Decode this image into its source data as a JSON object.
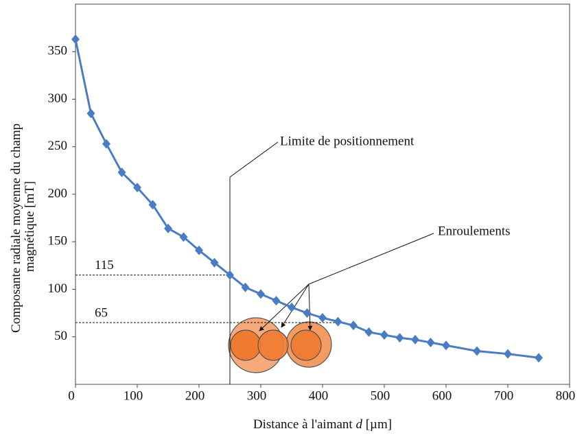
{
  "chart_data": {
    "type": "line",
    "y_label": [
      "Composante radiale moyenne du champ",
      "magnétique [mT]"
    ],
    "x_label": [
      "Distance à l'aimant ",
      "d",
      " [µm]"
    ],
    "x": [
      0,
      25,
      50,
      75,
      100,
      125,
      150,
      175,
      200,
      225,
      250,
      275,
      300,
      325,
      350,
      375,
      400,
      425,
      450,
      475,
      500,
      525,
      550,
      575,
      600,
      650,
      700,
      750
    ],
    "series": [
      {
        "color": "#4a7cc4",
        "values": [
          363,
          285,
          253,
          223,
          207,
          189,
          164,
          155,
          141,
          128,
          115,
          102,
          95,
          88,
          81,
          75,
          70,
          66,
          62,
          55,
          52,
          49,
          47,
          44,
          41,
          35,
          32,
          28
        ]
      }
    ],
    "xlim": [
      0,
      800
    ],
    "xticks": [
      0,
      100,
      200,
      300,
      400,
      500,
      600,
      700,
      800
    ],
    "ylim": [
      0,
      400
    ],
    "yticks": [
      50,
      100,
      150,
      200,
      250,
      300,
      350
    ],
    "reference_lines": [
      115,
      65
    ],
    "limit_x": 250,
    "annotations": [
      "Limite de positionnement",
      "Enroulements"
    ]
  }
}
